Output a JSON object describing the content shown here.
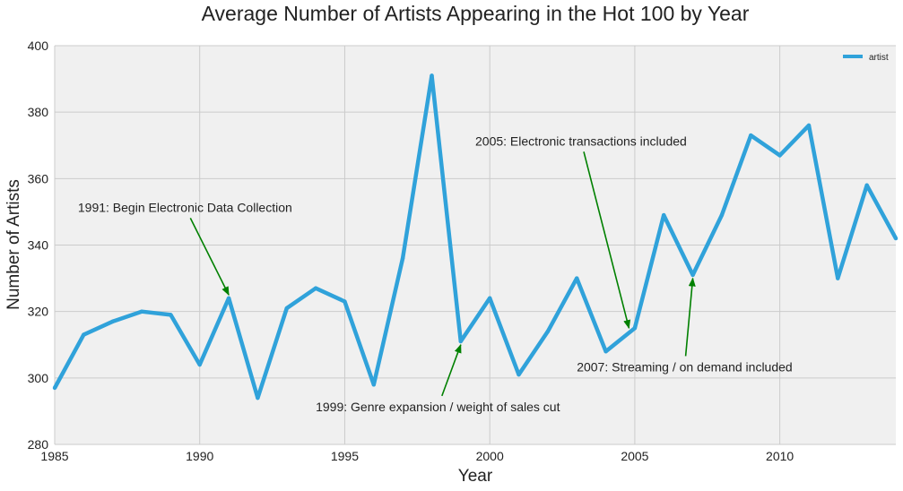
{
  "chart_data": {
    "type": "line",
    "title": "Average Number of Artists Appearing in the Hot 100 by Year",
    "xlabel": "Year",
    "ylabel": "Number of Artists",
    "xlim": [
      1985,
      2014
    ],
    "ylim": [
      280,
      400
    ],
    "xticks": [
      1985,
      1990,
      1995,
      2000,
      2005,
      2010
    ],
    "yticks": [
      280,
      300,
      320,
      340,
      360,
      380,
      400
    ],
    "grid": true,
    "legend_position": "top-right",
    "background_color": "#f0f0f0",
    "grid_color": "#cbcbcb",
    "series": [
      {
        "name": "artist",
        "color": "#30a2da",
        "x": [
          1985,
          1986,
          1987,
          1988,
          1989,
          1990,
          1991,
          1992,
          1993,
          1994,
          1995,
          1996,
          1997,
          1998,
          1999,
          2000,
          2001,
          2002,
          2003,
          2004,
          2005,
          2006,
          2007,
          2008,
          2009,
          2010,
          2011,
          2012,
          2013,
          2014
        ],
        "values": [
          297,
          313,
          317,
          320,
          319,
          304,
          324,
          294,
          321,
          327,
          323,
          298,
          336,
          391,
          311,
          324,
          301,
          314,
          330,
          308,
          315,
          349,
          331,
          349,
          373,
          367,
          376,
          330,
          358,
          342
        ]
      }
    ],
    "annotations": [
      {
        "text": "1991: Begin Electronic Data Collection",
        "text_x": 1985.8,
        "text_y": 350,
        "arrow_to": [
          1991,
          325
        ],
        "color": "#008000"
      },
      {
        "text": "1999: Genre expansion / weight of sales cut",
        "text_x": 1994,
        "text_y": 290,
        "arrow_to": [
          1999,
          310
        ],
        "color": "#008000"
      },
      {
        "text": "2005: Electronic transactions included",
        "text_x": 1999.5,
        "text_y": 370,
        "arrow_to": [
          2004.8,
          315
        ],
        "color": "#008000"
      },
      {
        "text": "2007: Streaming / on demand included",
        "text_x": 2003,
        "text_y": 302,
        "arrow_to": [
          2007,
          330
        ],
        "color": "#008000"
      }
    ]
  }
}
